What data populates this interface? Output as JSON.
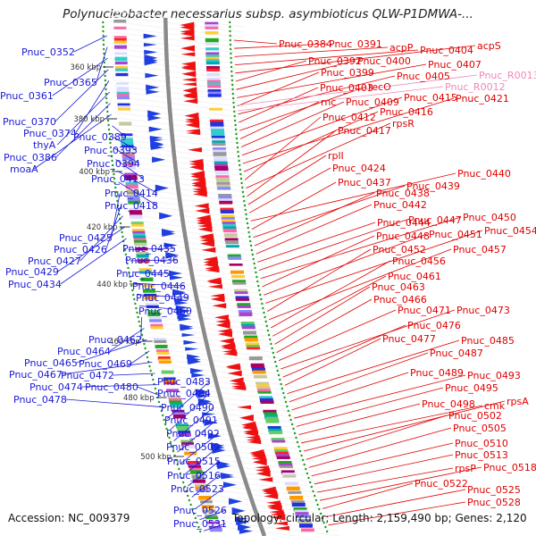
{
  "title": "Polynucleobacter necessarius subsp. asymbioticus QLW-P1DMWA-...",
  "accession": "Accession: NC_009379",
  "topology_line": "Topology: circular; Length: 2,159,490 bp; Genes: 2,120",
  "colors": {
    "left_labels": "#1a1ad6",
    "right_labels": "#e00000",
    "rna_labels": "#ee88bb",
    "backbone": "#8a8a8a",
    "dots": "#1c9a1c"
  },
  "scale_labels": [
    "360 kbp",
    "380 kbp",
    "400 kbp",
    "420 kbp",
    "440 kbp",
    "460 kbp",
    "480 kbp",
    "500 kbp"
  ],
  "left_labels": [
    "Pnuc_0352",
    "Pnuc_0365",
    "Pnuc_0361",
    "Pnuc_0370",
    "Pnuc_0374",
    "thyA",
    "Pnuc_0386",
    "moaA",
    "Pnuc_0389",
    "Pnuc_0393",
    "Pnuc_0394",
    "Pnuc_0413",
    "Pnuc_0414",
    "Pnuc_0418",
    "Pnuc_0425",
    "Pnuc_0426",
    "Pnuc_0427",
    "Pnuc_0429",
    "Pnuc_0434",
    "Pnuc_0435",
    "Pnuc_0436",
    "Pnuc_0445",
    "Pnuc_0446",
    "Pnuc_0449",
    "Pnuc_0460",
    "Pnuc_0462",
    "Pnuc_0464",
    "Pnuc_0465",
    "Pnuc_0469",
    "Pnuc_0467",
    "Pnuc_0472",
    "Pnuc_0474",
    "Pnuc_0480",
    "Pnuc_0478",
    "Pnuc_0483",
    "Pnuc_0484",
    "Pnuc_0490",
    "Pnuc_0491",
    "Pnuc_0492",
    "Pnuc_0509",
    "Pnuc_0515",
    "Pnuc_0516",
    "Pnuc_0523",
    "Pnuc_0526",
    "Pnuc_0531"
  ],
  "right_labels": [
    "Pnuc_0384",
    "Pnuc_0391",
    "acpP",
    "Pnuc_0404",
    "acpS",
    "Pnuc_0392",
    "Pnuc_0400",
    "Pnuc_0407",
    "Pnuc_0399",
    "Pnuc_0405",
    "Pnuc_0403",
    "recO",
    "rnc",
    "Pnuc_0409",
    "Pnuc_0415",
    "Pnuc_0421",
    "Pnuc_0416",
    "Pnuc_0412",
    "rpsR",
    "Pnuc_0417",
    "rplI",
    "Pnuc_0424",
    "Pnuc_0440",
    "Pnuc_0437",
    "Pnuc_0439",
    "Pnuc_0438",
    "Pnuc_0442",
    "Pnuc_0444",
    "Pnuc_0447",
    "Pnuc_0450",
    "Pnuc_0448",
    "Pnuc_0451",
    "Pnuc_0454",
    "Pnuc_0452",
    "Pnuc_0457",
    "Pnuc_0456",
    "Pnuc_0461",
    "Pnuc_0463",
    "Pnuc_0466",
    "Pnuc_0471",
    "Pnuc_0473",
    "Pnuc_0476",
    "Pnuc_0477",
    "Pnuc_0485",
    "Pnuc_0487",
    "Pnuc_0489",
    "Pnuc_0493",
    "Pnuc_0495",
    "Pnuc_0498",
    "cmk",
    "rpsA",
    "Pnuc_0502",
    "Pnuc_0505",
    "Pnuc_0510",
    "Pnuc_0513",
    "rpsP",
    "Pnuc_0518",
    "Pnuc_0522",
    "Pnuc_0525",
    "Pnuc_0528"
  ],
  "rna_labels": [
    "Pnuc_R0013",
    "Pnuc_R0012"
  ]
}
